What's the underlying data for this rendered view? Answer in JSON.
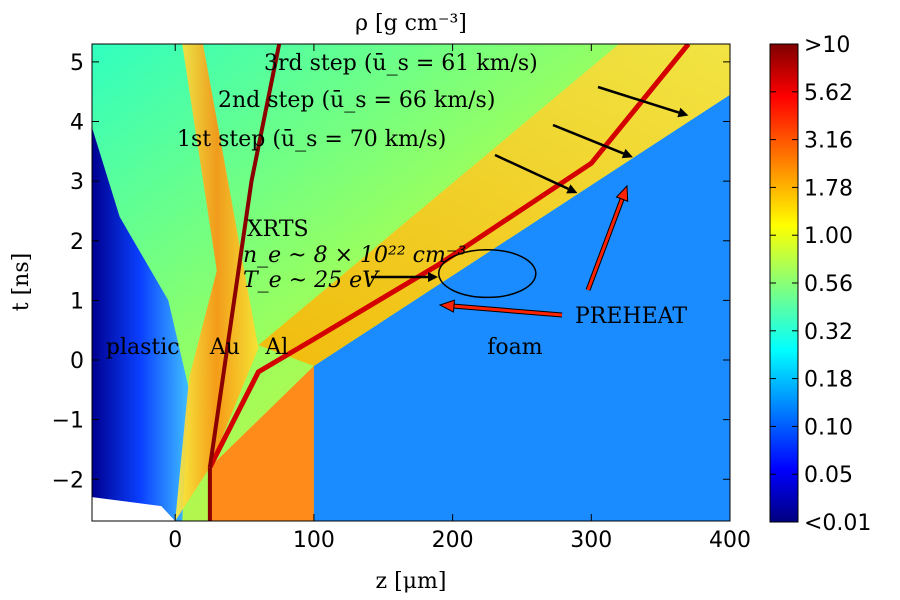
{
  "chart_data": {
    "type": "heatmap",
    "title": "ρ [g cm⁻³]",
    "xlabel": "z [μm]",
    "ylabel": "t [ns]",
    "xlim": [
      -60,
      400
    ],
    "ylim": [
      -2.7,
      5.3
    ],
    "xticks": [
      0,
      100,
      200,
      300,
      400
    ],
    "xtick_labels": [
      "0",
      "100",
      "200",
      "300",
      "400"
    ],
    "yticks": [
      -2,
      -1,
      0,
      1,
      2,
      3,
      4,
      5
    ],
    "ytick_labels": [
      "−2",
      "−1",
      "0",
      "1",
      "2",
      "3",
      "4",
      "5"
    ],
    "colorbar": {
      "labels": [
        ">10",
        "5.62",
        "3.16",
        "1.78",
        "1.00",
        "0.56",
        "0.32",
        "0.18",
        "0.10",
        "0.05",
        "<0.01"
      ],
      "colormap": "jet",
      "scale": "log"
    },
    "region_labels": [
      {
        "text": "plastic",
        "z": -50,
        "t": 0.1
      },
      {
        "text": "Au",
        "z": 25,
        "t": 0.1
      },
      {
        "text": "Al",
        "z": 65,
        "t": 0.1
      },
      {
        "text": "foam",
        "z": 225,
        "t": 0.1
      }
    ],
    "initial_interfaces": [
      {
        "name": "plastic/Au",
        "z": 0
      },
      {
        "name": "Au/Al",
        "z": 25
      },
      {
        "name": "Al/foam",
        "z": 100
      }
    ],
    "shock_steps": [
      {
        "label": "1st step",
        "us_bar": "70 km/s",
        "arrow_to": {
          "z": 290,
          "t": 2.8
        }
      },
      {
        "label": "2nd step",
        "us_bar": "66 km/s",
        "arrow_to": {
          "z": 330,
          "t": 3.4
        }
      },
      {
        "label": "3rd step",
        "us_bar": "61 km/s",
        "arrow_to": {
          "z": 370,
          "t": 4.1
        }
      }
    ],
    "annotations": {
      "step1": "1st step (ū_s = 70 km/s)",
      "step2": "2nd step (ū_s = 66 km/s)",
      "step3": "3rd step (ū_s = 61 km/s)",
      "xrts_title": "XRTS",
      "xrts_ne": "n_e ~ 8 × 10²² cm⁻³",
      "xrts_te": "T_e ~ 25 eV",
      "preheat": "PREHEAT"
    },
    "xrts_ellipse": {
      "z_center": 225,
      "t_center": 1.45,
      "z_halfwidth": 35,
      "t_halfwidth": 0.4
    },
    "colors": {
      "foam": "#1a8cff",
      "al_initial": "#ff8c1a",
      "au_line": "#8b0000",
      "background_dense": "#7fff7f",
      "preheat": "#cc0000",
      "preheat_arrow": "#ff2200"
    }
  }
}
